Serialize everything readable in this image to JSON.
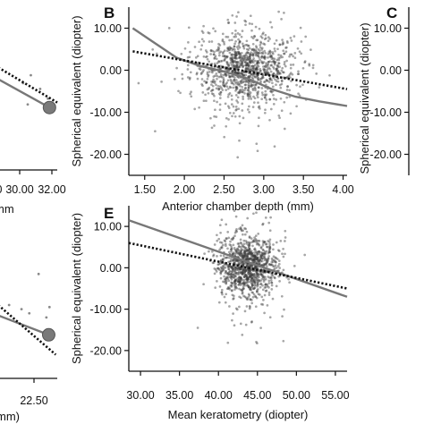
{
  "colors": {
    "points": "#3a3a3a",
    "fit_line": "#777777",
    "dotted_line": "#111111",
    "axis": "#111111"
  },
  "chart_data": [
    {
      "panel": "A",
      "type": "scatter",
      "partial": true,
      "letter": "",
      "xlabel_visible": "mm",
      "ylabel": "",
      "xticks": [
        "0",
        "30.00",
        "32.00"
      ],
      "xlim": [
        28.7,
        32.5
      ],
      "ylim": [
        -25,
        15
      ],
      "points": [
        [
          30.3,
          -4.5
        ],
        [
          31.4,
          -6.0
        ],
        [
          30.6,
          -10.0
        ],
        [
          31.9,
          -8.5
        ],
        [
          30.8,
          -2.5
        ]
      ],
      "highlight_point": [
        32.0,
        -10.8
      ],
      "fit_line": [
        [
          28.7,
          -3.5
        ],
        [
          32.0,
          -10.8
        ]
      ],
      "dotted_line": [
        [
          28.7,
          -0.5
        ],
        [
          32.5,
          -9.5
        ]
      ]
    },
    {
      "panel": "B",
      "type": "scatter",
      "letter": "B",
      "xlabel": "Anterior chamber depth (mm)",
      "ylabel": "Spherical equivalent (diopter)",
      "xticks": [
        "1.50",
        "2.00",
        "2.50",
        "3.00",
        "3.50",
        "4.00"
      ],
      "yticks": [
        "10.00",
        "0.00",
        "-10.00",
        "-20.00"
      ],
      "xlim": [
        1.3,
        4.05
      ],
      "ylim": [
        -25,
        15
      ],
      "cloud": {
        "x_center": 2.75,
        "x_spread": 0.33,
        "y_center": 0.3,
        "y_spread": 4.0,
        "n": 1100
      },
      "fit_line": [
        [
          1.35,
          10.0
        ],
        [
          1.6,
          6.8
        ],
        [
          1.9,
          3.0
        ],
        [
          2.2,
          1.0
        ],
        [
          2.5,
          -0.3
        ],
        [
          2.8,
          -2.0
        ],
        [
          3.1,
          -4.5
        ],
        [
          3.4,
          -6.3
        ],
        [
          3.7,
          -7.4
        ],
        [
          4.05,
          -8.5
        ]
      ],
      "dotted_line": [
        [
          1.35,
          4.5
        ],
        [
          4.05,
          -4.5
        ]
      ]
    },
    {
      "panel": "C",
      "type": "scatter",
      "partial": true,
      "letter": "C",
      "ylabel": "Spherical equivalent (diopter)",
      "yticks": [
        "10.00",
        "0.00",
        "-10.00",
        "-20.00"
      ],
      "ylim": [
        -25,
        15
      ]
    },
    {
      "panel": "D",
      "type": "scatter",
      "partial": true,
      "letter": "",
      "xlabel_visible": "mm)",
      "ylabel": "",
      "xticks": [
        "22.50"
      ],
      "xlim": [
        19.5,
        23.3
      ],
      "ylim": [
        -25,
        15
      ],
      "points": [
        [
          21.0,
          -10.0
        ],
        [
          22.6,
          -12.0
        ],
        [
          21.5,
          -11.0
        ],
        [
          20.2,
          -9.0
        ],
        [
          22.8,
          -9.5
        ],
        [
          22.1,
          -1.5
        ]
      ],
      "highlight_point": [
        22.75,
        -16.2
      ],
      "fit_line": [
        [
          19.5,
          -11.5
        ],
        [
          22.75,
          -16.2
        ]
      ],
      "dotted_line": [
        [
          19.5,
          -9.0
        ],
        [
          23.2,
          -21.0
        ]
      ]
    },
    {
      "panel": "E",
      "type": "scatter",
      "letter": "E",
      "xlabel": "Mean keratometry (diopter)",
      "ylabel": "Spherical equivalent (diopter)",
      "xticks": [
        "30.00",
        "35.00",
        "40.00",
        "45.00",
        "50.00",
        "55.00"
      ],
      "yticks": [
        "10.00",
        "0.00",
        "-10.00",
        "-20.00"
      ],
      "xlim": [
        28.5,
        56.5
      ],
      "ylim": [
        -25,
        15
      ],
      "cloud": {
        "x_center": 43.8,
        "x_spread": 1.9,
        "y_center": 0.2,
        "y_spread": 3.6,
        "n": 1100
      },
      "fit_line": [
        [
          28.5,
          11.5
        ],
        [
          56.5,
          -7.0
        ]
      ],
      "dotted_line": [
        [
          28.5,
          6.0
        ],
        [
          56.5,
          -5.0
        ]
      ]
    }
  ]
}
